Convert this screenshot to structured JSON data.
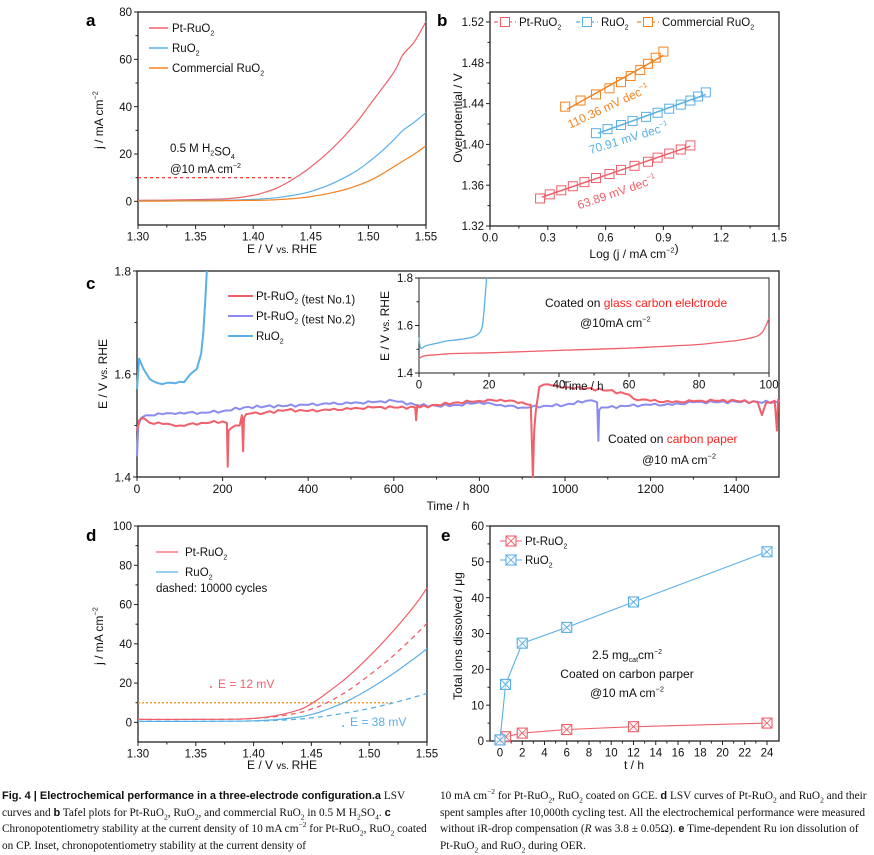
{
  "colors": {
    "pt_ruo2": "#f0606a",
    "ruo2": "#5ab0e6",
    "commercial_ruo2": "#f58220",
    "pt_ruo2_test2": "#8c8cf0",
    "axis": "#000000",
    "annotation_red": "#ff2020",
    "dotted_orange": "#f5a040"
  },
  "chart_data": [
    {
      "panel": "a",
      "type": "line",
      "title": "",
      "xlabel": "E / V vs. RHE",
      "ylabel": "j / mA cm⁻²",
      "xlim": [
        1.3,
        1.55
      ],
      "ylim": [
        -10,
        80
      ],
      "xticks": [
        "1.30",
        "1.35",
        "1.40",
        "1.45",
        "1.50",
        "1.55"
      ],
      "yticks": [
        "0",
        "20",
        "40",
        "60",
        "80"
      ],
      "legend_position": "top-left",
      "annotations": [
        "0.5 M H₂SO₄",
        "@10 mA cm⁻²"
      ],
      "reference_line": {
        "y": 10,
        "x_range": [
          1.3,
          1.435
        ],
        "style": "dashed",
        "color": "#ee2222"
      },
      "x": [
        1.3,
        1.32,
        1.34,
        1.36,
        1.38,
        1.4,
        1.41,
        1.42,
        1.43,
        1.44,
        1.45,
        1.46,
        1.47,
        1.48,
        1.49,
        1.5,
        1.51,
        1.52,
        1.525,
        1.53,
        1.54,
        1.55
      ],
      "series": [
        {
          "name": "Pt-RuO₂",
          "values": [
            0.4,
            0.5,
            0.6,
            0.8,
            1.2,
            2.5,
            3.8,
            5.5,
            8.0,
            11.0,
            14.5,
            18.5,
            23.0,
            28.0,
            33.5,
            40.0,
            46.5,
            53.0,
            57.0,
            62.0,
            67.5,
            76.0
          ]
        },
        {
          "name": "RuO₂",
          "values": [
            0.2,
            0.2,
            0.3,
            0.4,
            0.5,
            0.8,
            1.1,
            1.5,
            2.2,
            3.0,
            4.2,
            5.8,
            7.8,
            10.2,
            13.0,
            16.5,
            20.5,
            25.0,
            27.5,
            30.0,
            33.5,
            37.5
          ]
        },
        {
          "name": "Commercial RuO₂",
          "values": [
            0.1,
            0.1,
            0.2,
            0.2,
            0.3,
            0.4,
            0.5,
            0.7,
            1.0,
            1.4,
            2.0,
            2.8,
            3.8,
            5.0,
            6.6,
            8.5,
            11.0,
            14.0,
            15.5,
            17.0,
            20.0,
            23.5
          ]
        }
      ]
    },
    {
      "panel": "b",
      "type": "scatter",
      "title": "",
      "xlabel": "Log (j / mA cm⁻²)",
      "ylabel": "Overpotential / V",
      "xlim": [
        0.0,
        1.5
      ],
      "ylim": [
        1.32,
        1.52
      ],
      "xticks": [
        "0.0",
        "0.3",
        "0.6",
        "0.9",
        "1.2",
        "1.5"
      ],
      "yticks": [
        "1.32",
        "1.36",
        "1.40",
        "1.44",
        "1.48",
        "1.52"
      ],
      "legend_position": "top",
      "series": [
        {
          "name": "Pt-RuO₂",
          "slope_label": "63.89 mV dec⁻¹",
          "x": [
            0.26,
            0.31,
            0.37,
            0.43,
            0.49,
            0.55,
            0.62,
            0.68,
            0.75,
            0.82,
            0.87,
            0.93,
            0.99,
            1.04
          ],
          "values": [
            1.347,
            1.351,
            1.355,
            1.359,
            1.363,
            1.367,
            1.371,
            1.375,
            1.379,
            1.383,
            1.387,
            1.391,
            1.395,
            1.399
          ]
        },
        {
          "name": "RuO₂",
          "slope_label": "70.91 mV dec⁻¹",
          "x": [
            0.55,
            0.61,
            0.68,
            0.74,
            0.81,
            0.87,
            0.93,
            0.99,
            1.04,
            1.08,
            1.12
          ],
          "values": [
            1.411,
            1.415,
            1.419,
            1.423,
            1.427,
            1.431,
            1.435,
            1.439,
            1.443,
            1.447,
            1.451
          ]
        },
        {
          "name": "Commercial RuO₂",
          "slope_label": "110.36 mV dec⁻¹",
          "x": [
            0.39,
            0.47,
            0.55,
            0.62,
            0.68,
            0.73,
            0.78,
            0.82,
            0.86,
            0.9
          ],
          "values": [
            1.437,
            1.443,
            1.449,
            1.455,
            1.461,
            1.467,
            1.473,
            1.479,
            1.485,
            1.491
          ]
        }
      ]
    },
    {
      "panel": "c",
      "type": "line",
      "title": "",
      "xlabel": "Time / h",
      "ylabel": "E / V vs. RHE",
      "xlim": [
        0,
        1500
      ],
      "ylim": [
        1.4,
        1.8
      ],
      "xticks": [
        "0",
        "200",
        "400",
        "600",
        "800",
        "1000",
        "1200",
        "1400"
      ],
      "yticks": [
        "1.4",
        "1.6",
        "1.8"
      ],
      "legend_position": "top-left",
      "annotations": [
        "Coated on ",
        "carbon paper",
        "@10 mA cm⁻²"
      ],
      "series": [
        {
          "name": "Pt-RuO₂ (test No.1)",
          "x": [
            0,
            5,
            15,
            30,
            60,
            100,
            150,
            200,
            210,
            212,
            214,
            220,
            240,
            245,
            248,
            250,
            255,
            300,
            350,
            400,
            450,
            500,
            550,
            600,
            650,
            652,
            655,
            660,
            700,
            750,
            800,
            850,
            900,
            920,
            925,
            928,
            932,
            940,
            960,
            980,
            1000,
            1050,
            1100,
            1150,
            1160,
            1200,
            1250,
            1300,
            1350,
            1400,
            1450,
            1460,
            1470,
            1490,
            1495,
            1498,
            1500
          ],
          "values": [
            1.49,
            1.51,
            1.515,
            1.505,
            1.503,
            1.5,
            1.505,
            1.508,
            1.505,
            1.42,
            1.49,
            1.495,
            1.5,
            1.52,
            1.45,
            1.515,
            1.522,
            1.525,
            1.53,
            1.528,
            1.53,
            1.532,
            1.535,
            1.535,
            1.535,
            1.51,
            1.54,
            1.535,
            1.54,
            1.545,
            1.548,
            1.55,
            1.545,
            1.54,
            1.4,
            1.49,
            1.53,
            1.575,
            1.58,
            1.578,
            1.574,
            1.572,
            1.568,
            1.56,
            1.552,
            1.548,
            1.545,
            1.547,
            1.548,
            1.548,
            1.545,
            1.52,
            1.545,
            1.548,
            1.49,
            1.55,
            1.545
          ]
        },
        {
          "name": "Pt-RuO₂ (test No.2)",
          "x": [
            0,
            3,
            10,
            30,
            60,
            100,
            150,
            200,
            250,
            300,
            350,
            400,
            450,
            500,
            550,
            600,
            650,
            700,
            750,
            800,
            850,
            900,
            950,
            1000,
            1050,
            1075,
            1078,
            1080,
            1085,
            1100,
            1150,
            1200,
            1250,
            1300,
            1350,
            1400,
            1450,
            1500
          ],
          "values": [
            1.44,
            1.5,
            1.515,
            1.52,
            1.522,
            1.525,
            1.525,
            1.528,
            1.535,
            1.537,
            1.538,
            1.54,
            1.542,
            1.543,
            1.545,
            1.548,
            1.54,
            1.538,
            1.54,
            1.545,
            1.54,
            1.535,
            1.538,
            1.54,
            1.548,
            1.545,
            1.47,
            1.53,
            1.535,
            1.535,
            1.538,
            1.54,
            1.54,
            1.545,
            1.545,
            1.546,
            1.546,
            1.545
          ]
        },
        {
          "name": "RuO₂",
          "x": [
            0,
            5,
            15,
            30,
            50,
            70,
            90,
            110,
            125,
            140,
            150,
            155,
            160,
            163
          ],
          "values": [
            1.57,
            1.63,
            1.61,
            1.59,
            1.582,
            1.583,
            1.582,
            1.584,
            1.6,
            1.61,
            1.64,
            1.68,
            1.75,
            1.8
          ]
        }
      ]
    },
    {
      "panel": "c-inset",
      "type": "line",
      "title": "",
      "xlabel": "Time / h",
      "ylabel": "E / V vs. RHE",
      "xlim": [
        0,
        100
      ],
      "ylim": [
        1.4,
        1.8
      ],
      "xticks": [
        "0",
        "20",
        "40",
        "60",
        "80",
        "100"
      ],
      "yticks": [
        "1.4",
        "1.6",
        "1.8"
      ],
      "annotations": [
        "Coated on ",
        "glass carbon elelctrode",
        "@10mA cm⁻²"
      ],
      "series": [
        {
          "name": "Pt-RuO₂",
          "x": [
            0,
            1,
            3,
            6,
            10,
            20,
            30,
            40,
            50,
            60,
            70,
            80,
            85,
            90,
            95,
            98,
            100
          ],
          "values": [
            1.46,
            1.47,
            1.475,
            1.478,
            1.482,
            1.485,
            1.49,
            1.495,
            1.5,
            1.505,
            1.512,
            1.52,
            1.528,
            1.535,
            1.548,
            1.57,
            1.63
          ]
        },
        {
          "name": "RuO₂",
          "x": [
            0,
            0.5,
            2,
            5,
            8,
            12,
            15,
            17,
            18,
            18.5,
            19,
            19.3
          ],
          "values": [
            1.55,
            1.505,
            1.515,
            1.525,
            1.535,
            1.542,
            1.55,
            1.565,
            1.59,
            1.65,
            1.74,
            1.8
          ]
        }
      ]
    },
    {
      "panel": "d",
      "type": "line",
      "title": "",
      "xlabel": "E / V vs. RHE",
      "ylabel": "j / mA cm⁻²",
      "xlim": [
        1.3,
        1.55
      ],
      "ylim": [
        -10,
        100
      ],
      "xticks": [
        "1.30",
        "1.35",
        "1.40",
        "1.45",
        "1.50",
        "1.55"
      ],
      "yticks": [
        "0",
        "20",
        "40",
        "60",
        "80",
        "100"
      ],
      "legend_position": "top-left",
      "annotations": [
        "dashed: 10000 cycles",
        "E = 12 mV",
        "E = 38 mV"
      ],
      "reference_line": {
        "y": 10,
        "x_range": [
          1.3,
          1.52
        ],
        "style": "dotted",
        "color": "#f5a040"
      },
      "x": [
        1.3,
        1.34,
        1.38,
        1.4,
        1.42,
        1.44,
        1.45,
        1.46,
        1.48,
        1.5,
        1.52,
        1.54,
        1.55
      ],
      "series": [
        {
          "name": "Pt-RuO₂",
          "style": "solid",
          "values": [
            1.5,
            1.5,
            1.6,
            2.0,
            3.5,
            6.5,
            9.5,
            13.5,
            22.5,
            33.5,
            46.0,
            60.0,
            68.5
          ]
        },
        {
          "name": "Pt-RuO₂ (10000 cycles)",
          "style": "dashed",
          "values": [
            1.5,
            1.5,
            1.6,
            2.0,
            3.0,
            5.0,
            6.8,
            9.0,
            15.5,
            24.0,
            33.5,
            44.5,
            50.5
          ]
        },
        {
          "name": "RuO₂",
          "style": "solid",
          "values": [
            0.5,
            0.5,
            0.6,
            0.8,
            1.4,
            2.8,
            4.0,
            5.8,
            10.5,
            17.0,
            24.5,
            33.0,
            37.5
          ]
        },
        {
          "name": "RuO₂ (10000 cycles)",
          "style": "dashed",
          "values": [
            0.5,
            0.5,
            0.6,
            0.7,
            1.0,
            1.7,
            2.3,
            3.0,
            4.8,
            7.0,
            9.8,
            13.0,
            14.8
          ]
        }
      ]
    },
    {
      "panel": "e",
      "type": "line",
      "title": "",
      "xlabel": "t / h",
      "ylabel": "Total ions dissolved / μg",
      "xlim": [
        -1,
        25
      ],
      "ylim": [
        0,
        60
      ],
      "xticks": [
        "0",
        "2",
        "4",
        "6",
        "8",
        "10",
        "12",
        "14",
        "16",
        "18",
        "20",
        "22",
        "24"
      ],
      "yticks": [
        "0",
        "10",
        "20",
        "30",
        "40",
        "50",
        "60"
      ],
      "legend_position": "top-left",
      "annotations": [
        "2.5 mg",
        "cat",
        "cm⁻²",
        "Coated on  carbon parper",
        "@10 mA cm⁻²"
      ],
      "x": [
        0,
        0.5,
        2,
        6,
        12,
        24
      ],
      "series": [
        {
          "name": "Pt-RuO₂",
          "values": [
            0.3,
            1.2,
            2.2,
            3.2,
            4.0,
            5.0
          ]
        },
        {
          "name": "RuO₂",
          "values": [
            0.3,
            15.8,
            27.3,
            31.7,
            38.8,
            52.8
          ]
        }
      ]
    }
  ],
  "panel_labels": [
    "a",
    "b",
    "c",
    "d",
    "e"
  ],
  "caption": {
    "fig_label": "Fig. 4 | Electrochemical performance in a three-electrode configuration.",
    "a_label": "a",
    "text1": " LSV curves and ",
    "b_label": "b",
    "text2": " Tafel plots for Pt-RuO",
    "text3": ", RuO",
    "text4": ", and commercial RuO",
    "text5": " in 0.5 M H",
    "text6": "SO",
    "text7": ". ",
    "c_label": "c",
    "text8": " Chronopotentiometry stability at the current density of 10 mA cm",
    "text9": " for Pt-RuO",
    "text10": ", RuO",
    "text11": " coated on CP. Inset, chronopotentiometry stability at the current density of 10 mA cm",
    "text12": " for Pt-RuO",
    "text13": ", RuO",
    "text14": " coated on GCE. ",
    "d_label": "d",
    "text15": " LSV curves of Pt-RuO",
    "text16": " and RuO",
    "text17": " and their spent samples after 10,000th cycling test. All the electrochemical performance were measured without iR-drop compensation (",
    "r_var": "R",
    "text18": " was 3.8 ± 0.05Ω). ",
    "e_label": "e",
    "text19": " Time-dependent Ru ion dissolution of Pt-RuO",
    "text20": " and RuO",
    "text21": " during OER.",
    "sub2": "2",
    "sub4": "4",
    "sup_minus2": "−2"
  }
}
